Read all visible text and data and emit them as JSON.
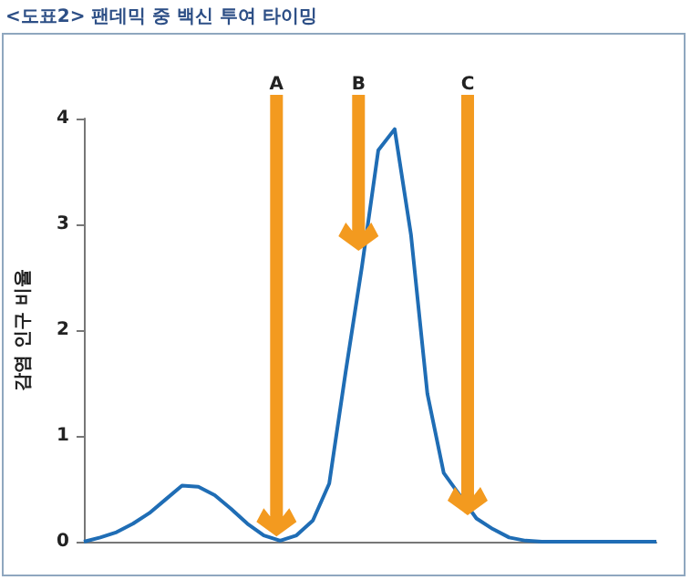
{
  "chart_data": {
    "type": "line",
    "title": "<도표2> 팬데믹 중 백신 투여 타이밍",
    "ylabel": "감염 인구 비율",
    "categories": [
      null,
      null,
      null,
      null,
      null,
      null,
      null,
      null,
      null,
      null,
      null,
      null,
      null,
      null,
      null,
      null,
      null,
      null,
      null,
      null,
      null,
      null,
      null,
      null,
      null,
      null,
      null,
      null,
      null,
      null,
      null,
      null,
      null,
      null,
      null,
      null
    ],
    "series": [
      {
        "color": "#1f6db5",
        "values": [
          0,
          0.04,
          0.09,
          0.17,
          0.27,
          0.4,
          0.53,
          0.52,
          0.44,
          0.31,
          0.17,
          0.06,
          0.01,
          0.06,
          0.2,
          0.55,
          1.6,
          2.6,
          3.7,
          3.9,
          2.9,
          1.4,
          0.65,
          null,
          0.22,
          0.12,
          0.04,
          0.01,
          0,
          0,
          0,
          0,
          0,
          0,
          0,
          0
        ]
      }
    ],
    "ylim": [
      0,
      4
    ],
    "yticks": [
      0,
      1,
      2,
      3,
      4
    ],
    "tick_labels": "y",
    "grid": false,
    "line_style": "solid",
    "annotations": [
      "A",
      "B",
      "C"
    ]
  }
}
